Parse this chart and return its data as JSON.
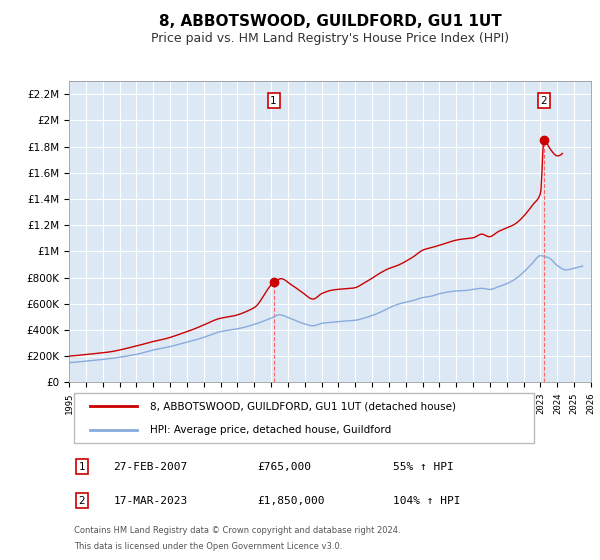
{
  "title": "8, ABBOTSWOOD, GUILDFORD, GU1 1UT",
  "subtitle": "Price paid vs. HM Land Registry's House Price Index (HPI)",
  "title_fontsize": 11,
  "subtitle_fontsize": 9,
  "background_color": "#ffffff",
  "plot_bg_color": "#dce9f5",
  "grid_color": "#ffffff",
  "red_line_color": "#cc0000",
  "blue_line_color": "#88aadd",
  "annotation1_date": "27-FEB-2007",
  "annotation1_price": "£765,000",
  "annotation1_hpi": "55% ↑ HPI",
  "annotation1_year": 2007.15,
  "annotation1_value": 765000,
  "annotation2_date": "17-MAR-2023",
  "annotation2_price": "£1,850,000",
  "annotation2_hpi": "104% ↑ HPI",
  "annotation2_year": 2023.21,
  "annotation2_value": 1850000,
  "legend_label_red": "8, ABBOTSWOOD, GUILDFORD, GU1 1UT (detached house)",
  "legend_label_blue": "HPI: Average price, detached house, Guildford",
  "footnote1": "Contains HM Land Registry data © Crown copyright and database right 2024.",
  "footnote2": "This data is licensed under the Open Government Licence v3.0.",
  "ylim_max": 2300000,
  "xmin": 1995,
  "xmax": 2026,
  "yticks": [
    0,
    200000,
    400000,
    600000,
    800000,
    1000000,
    1200000,
    1400000,
    1600000,
    1800000,
    2000000,
    2200000
  ],
  "ytick_labels": [
    "£0",
    "£200K",
    "£400K",
    "£600K",
    "£800K",
    "£1M",
    "£1.2M",
    "£1.4M",
    "£1.6M",
    "£1.8M",
    "£2M",
    "£2.2M"
  ],
  "xticks": [
    1995,
    1996,
    1997,
    1998,
    1999,
    2000,
    2001,
    2002,
    2003,
    2004,
    2005,
    2006,
    2007,
    2008,
    2009,
    2010,
    2011,
    2012,
    2013,
    2014,
    2015,
    2016,
    2017,
    2018,
    2019,
    2020,
    2021,
    2022,
    2023,
    2024,
    2025,
    2026
  ]
}
